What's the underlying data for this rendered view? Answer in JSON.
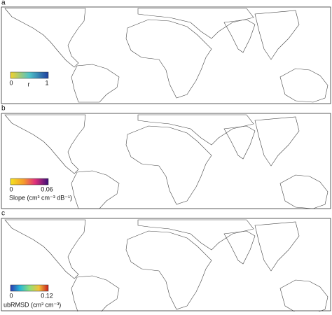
{
  "panels": [
    {
      "label": "a",
      "colorbar": {
        "ticks": [
          "0",
          "1"
        ],
        "title": "r"
      }
    },
    {
      "label": "b",
      "colorbar": {
        "ticks": [
          "0",
          "0.06"
        ],
        "title": "Slope (cm³ cm⁻³ dB⁻¹)"
      }
    },
    {
      "label": "c",
      "colorbar": {
        "ticks": [
          "0",
          "0.12"
        ],
        "title": "ubRMSD (cm³ cm⁻³)"
      }
    }
  ]
}
